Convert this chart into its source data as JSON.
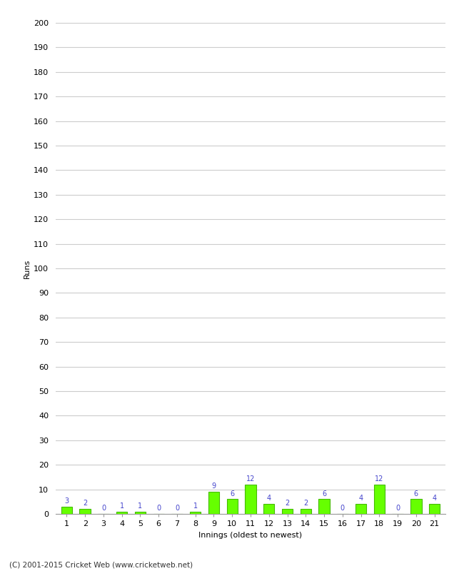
{
  "innings": [
    1,
    2,
    3,
    4,
    5,
    6,
    7,
    8,
    9,
    10,
    11,
    12,
    13,
    14,
    15,
    16,
    17,
    18,
    19,
    20,
    21
  ],
  "runs": [
    3,
    2,
    0,
    1,
    1,
    0,
    0,
    1,
    9,
    6,
    12,
    4,
    2,
    2,
    6,
    0,
    4,
    12,
    0,
    6,
    4
  ],
  "bar_color": "#66ff00",
  "bar_edge_color": "#44bb00",
  "label_color": "#4444cc",
  "ylabel": "Runs",
  "xlabel": "Innings (oldest to newest)",
  "ylim": [
    0,
    200
  ],
  "ytick_step": 10,
  "background_color": "#ffffff",
  "grid_color": "#cccccc",
  "footer": "(C) 2001-2015 Cricket Web (www.cricketweb.net)"
}
